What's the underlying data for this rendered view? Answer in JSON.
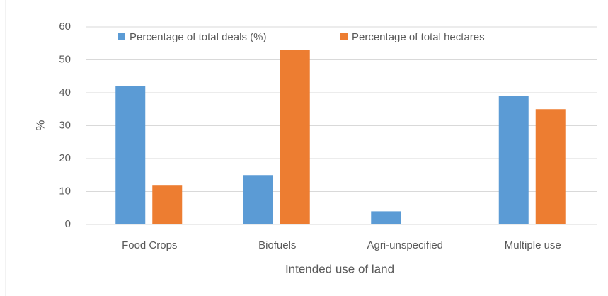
{
  "chart_data": {
    "type": "bar",
    "x_label": "Intended use of land",
    "y_label": "%",
    "categories": [
      "Food Crops",
      "Biofuels",
      "Agri-unspecified",
      "Multiple use"
    ],
    "series": [
      {
        "name": "Percentage of total deals (%)",
        "color": "#5b9bd5",
        "values": [
          42,
          15,
          4,
          39
        ]
      },
      {
        "name": "Percentage of total hectares",
        "color": "#ed7d31",
        "values": [
          12,
          53,
          0,
          35
        ]
      }
    ],
    "ylim": [
      0,
      60
    ],
    "yticks": [
      0,
      10,
      20,
      30,
      40,
      50,
      60
    ],
    "grid": true,
    "legend": "top"
  }
}
